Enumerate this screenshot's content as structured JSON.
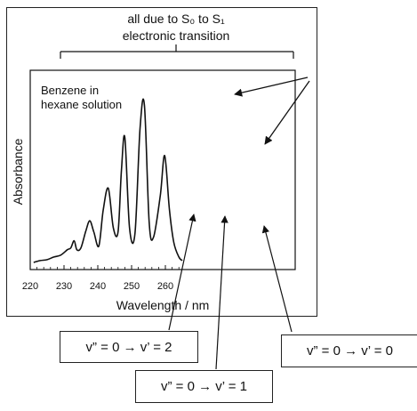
{
  "bracket": {
    "line1": "all due to S₀ to S₁",
    "line2": "electronic transition"
  },
  "chart_data": {
    "type": "line",
    "title": "",
    "inset_label": [
      "Benzene in",
      "hexane solution"
    ],
    "xlabel": "Wavelength / nm",
    "ylabel": "Absorbance",
    "xlim": [
      220,
      266
    ],
    "ylim": [
      0,
      1
    ],
    "xticks": [
      220,
      230,
      240,
      250,
      260
    ],
    "grid": false,
    "series": [
      {
        "x": [
          221,
          223,
          225,
          227,
          229,
          231,
          232,
          233,
          233.8,
          235,
          236.4,
          237.6,
          238.8,
          240.3,
          241.6,
          243.1,
          244.6,
          246,
          247,
          248,
          249.4,
          251,
          252.5,
          253.8,
          255.2,
          256.5,
          258.5,
          259.8,
          261.2,
          262.5,
          264,
          265
        ],
        "y": [
          0.01,
          0.02,
          0.025,
          0.04,
          0.05,
          0.08,
          0.09,
          0.13,
          0.08,
          0.09,
          0.18,
          0.24,
          0.18,
          0.1,
          0.3,
          0.42,
          0.2,
          0.18,
          0.52,
          0.7,
          0.2,
          0.17,
          0.75,
          0.88,
          0.23,
          0.15,
          0.38,
          0.6,
          0.3,
          0.12,
          0.04,
          0.02
        ]
      }
    ]
  },
  "annotations": [
    {
      "text": "v” = 0 → v’ = 2"
    },
    {
      "text": "v” = 0 → v’ = 1"
    },
    {
      "text": "v” = 0 → v’ = 0"
    }
  ],
  "colors": {
    "line": "#111111",
    "background": "#ffffff"
  }
}
